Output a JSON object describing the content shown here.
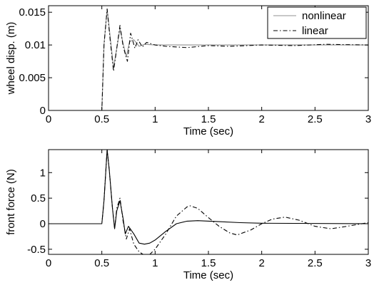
{
  "chart_data": [
    {
      "type": "line",
      "xlabel": "Time (sec)",
      "ylabel": "wheel disp. (m)",
      "xlim": [
        0,
        3
      ],
      "ylim": [
        0,
        0.016
      ],
      "xticks": [
        "0",
        "0.5",
        "1",
        "1.5",
        "2",
        "2.5",
        "3"
      ],
      "yticks": [
        "0",
        "0.005",
        "0.01",
        "0.015"
      ],
      "grid": false,
      "legend_position": "top-right",
      "series": [
        {
          "name": "nonlinear",
          "color": "#909090",
          "style": "solid",
          "x": [
            0,
            0.5,
            0.52,
            0.55,
            0.58,
            0.61,
            0.64,
            0.67,
            0.7,
            0.73,
            0.76,
            0.8,
            0.85,
            0.9,
            1.0,
            1.2,
            1.5,
            2.0,
            2.5,
            3.0
          ],
          "y": [
            0,
            0,
            0.01,
            0.0155,
            0.011,
            0.0065,
            0.0095,
            0.0125,
            0.0102,
            0.0082,
            0.0105,
            0.0108,
            0.0098,
            0.0101,
            0.01,
            0.01,
            0.01,
            0.01,
            0.01,
            0.01
          ]
        },
        {
          "name": "linear",
          "color": "#000000",
          "style": "dashdot",
          "x": [
            0,
            0.5,
            0.52,
            0.55,
            0.58,
            0.61,
            0.64,
            0.67,
            0.7,
            0.74,
            0.77,
            0.81,
            0.84,
            0.88,
            0.92,
            1.0,
            1.1,
            1.3,
            1.5,
            1.7,
            2.0,
            2.3,
            2.6,
            3.0
          ],
          "y": [
            0,
            0,
            0.01,
            0.0155,
            0.0105,
            0.006,
            0.0095,
            0.013,
            0.0098,
            0.0075,
            0.0118,
            0.0095,
            0.0108,
            0.0097,
            0.0104,
            0.01,
            0.0098,
            0.0096,
            0.0099,
            0.0098,
            0.01,
            0.0099,
            0.0101,
            0.01
          ]
        }
      ]
    },
    {
      "type": "line",
      "xlabel": "Time (sec)",
      "ylabel": "front force (N)",
      "xlim": [
        0,
        3
      ],
      "ylim": [
        -0.6,
        1.45
      ],
      "xticks": [
        "0",
        "0.5",
        "1",
        "1.5",
        "2",
        "2.5",
        "3"
      ],
      "yticks": [
        "-0.5",
        "0",
        "0.5",
        "1"
      ],
      "grid": false,
      "series": [
        {
          "name": "nonlinear",
          "color": "#000000",
          "style": "solid",
          "x": [
            0,
            0.5,
            0.52,
            0.55,
            0.57,
            0.6,
            0.62,
            0.64,
            0.67,
            0.7,
            0.72,
            0.75,
            0.8,
            0.85,
            0.9,
            0.95,
            1.0,
            1.1,
            1.2,
            1.3,
            1.4,
            1.6,
            1.8,
            2.0,
            3.0
          ],
          "y": [
            0,
            0,
            0.45,
            1.45,
            1.05,
            0.3,
            -0.1,
            0.25,
            0.45,
            0.1,
            -0.2,
            -0.05,
            -0.2,
            -0.38,
            -0.4,
            -0.38,
            -0.32,
            -0.15,
            0.0,
            0.05,
            0.06,
            0.04,
            0.02,
            0.01,
            0.0
          ]
        },
        {
          "name": "linear",
          "color": "#000000",
          "style": "dashdot",
          "x": [
            0,
            0.5,
            0.52,
            0.55,
            0.57,
            0.6,
            0.62,
            0.64,
            0.67,
            0.7,
            0.73,
            0.76,
            0.8,
            0.85,
            0.9,
            0.95,
            1.0,
            1.1,
            1.2,
            1.3,
            1.33,
            1.4,
            1.5,
            1.6,
            1.7,
            1.77,
            1.9,
            2.0,
            2.1,
            2.22,
            2.35,
            2.5,
            2.65,
            2.8,
            3.0
          ],
          "y": [
            0,
            0,
            0.45,
            1.45,
            1.05,
            0.3,
            -0.1,
            0.3,
            0.5,
            0.05,
            -0.3,
            -0.1,
            -0.4,
            -0.55,
            -0.62,
            -0.6,
            -0.5,
            -0.2,
            0.15,
            0.33,
            0.35,
            0.3,
            0.12,
            -0.05,
            -0.18,
            -0.22,
            -0.12,
            0.0,
            0.09,
            0.13,
            0.07,
            -0.05,
            -0.1,
            -0.05,
            0.02
          ]
        }
      ]
    }
  ]
}
